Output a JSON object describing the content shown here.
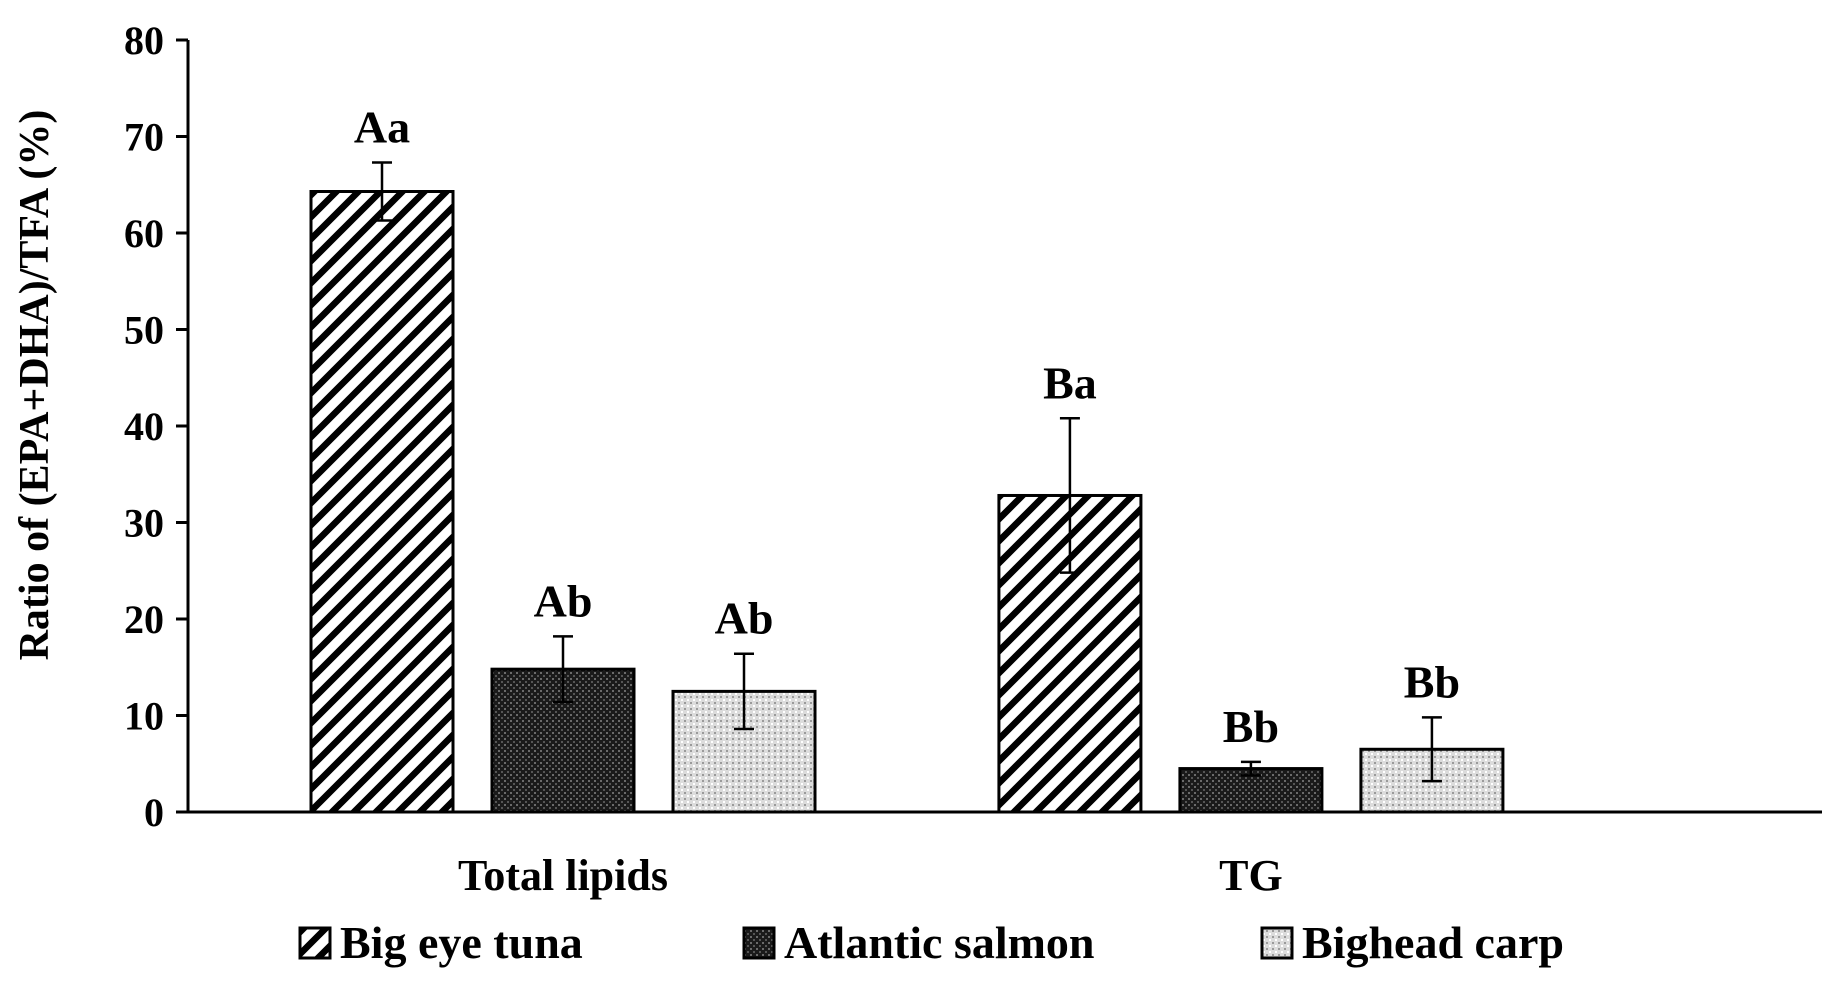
{
  "chart_data": {
    "type": "bar",
    "categories": [
      "Total lipids",
      "TG"
    ],
    "ylabel": "Ratio of (EPA+DHA)/TFA (%)",
    "xlabel": "",
    "ylim": [
      0,
      80
    ],
    "yticks": [
      0,
      10,
      20,
      30,
      40,
      50,
      60,
      70,
      80
    ],
    "grid": false,
    "legend_position": "bottom",
    "series": [
      {
        "name": "Big eye tuna",
        "pattern": "diagonal-hatch",
        "values": [
          64.3,
          32.8
        ],
        "errors": [
          3.0,
          8.0
        ],
        "labels": [
          "Aa",
          "Ba"
        ]
      },
      {
        "name": "Atlantic salmon",
        "pattern": "dense-dark",
        "values": [
          14.8,
          4.5
        ],
        "errors": [
          3.4,
          0.7
        ],
        "labels": [
          "Ab",
          "Bb"
        ]
      },
      {
        "name": "Bighead carp",
        "pattern": "light-dotted",
        "values": [
          12.5,
          6.5
        ],
        "errors": [
          3.9,
          3.3
        ],
        "labels": [
          "Ab",
          "Bb"
        ]
      }
    ]
  }
}
